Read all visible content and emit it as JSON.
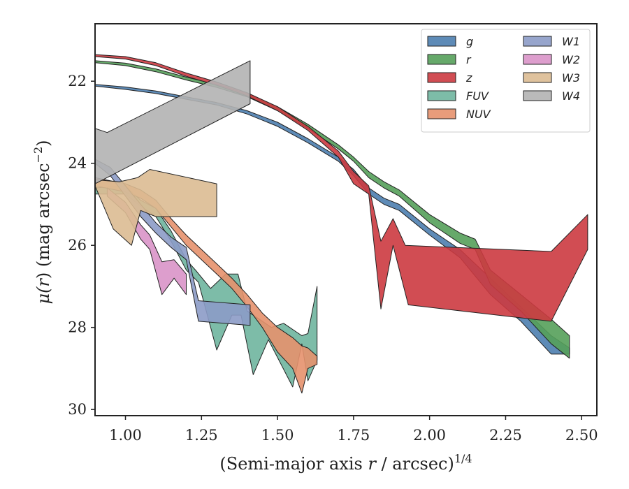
{
  "chart_data": {
    "type": "area",
    "xlabel_main": "(Semi-major axis ",
    "xlabel_var": "r",
    "xlabel_mid": " / arcsec)",
    "xlabel_sup": "1/4",
    "ylabel_mu": "μ(",
    "ylabel_var": "r",
    "ylabel_mid": ") (mag arcsec",
    "ylabel_sup": "−2",
    "ylabel_end": ")",
    "xlim": [
      0.9,
      2.55
    ],
    "ylim": [
      30.15,
      20.6
    ],
    "y_inverted": true,
    "grid": false,
    "legend_position": "top-right",
    "legend_columns": 2,
    "x_ticks": [
      1.0,
      1.25,
      1.5,
      1.75,
      2.0,
      2.25,
      2.5
    ],
    "x_tick_labels": [
      "1.00",
      "1.25",
      "1.50",
      "1.75",
      "2.00",
      "2.25",
      "2.50"
    ],
    "y_ticks": [
      22,
      24,
      26,
      28,
      30
    ],
    "y_tick_labels": [
      "22",
      "24",
      "26",
      "28",
      "30"
    ],
    "series": [
      {
        "name": "g",
        "color": "#4c7eaf",
        "upper": [
          [
            0.9,
            22.08
          ],
          [
            1.0,
            22.14
          ],
          [
            1.1,
            22.24
          ],
          [
            1.2,
            22.38
          ],
          [
            1.3,
            22.52
          ],
          [
            1.4,
            22.72
          ],
          [
            1.5,
            23.0
          ],
          [
            1.6,
            23.4
          ],
          [
            1.7,
            23.85
          ],
          [
            1.75,
            24.15
          ],
          [
            1.8,
            24.6
          ],
          [
            1.85,
            24.85
          ],
          [
            1.9,
            25.0
          ],
          [
            2.0,
            25.6
          ],
          [
            2.1,
            26.1
          ],
          [
            2.2,
            26.8
          ],
          [
            2.3,
            27.5
          ],
          [
            2.4,
            28.2
          ],
          [
            2.46,
            28.5
          ]
        ],
        "lower": [
          [
            0.9,
            22.12
          ],
          [
            1.0,
            22.2
          ],
          [
            1.1,
            22.3
          ],
          [
            1.2,
            22.44
          ],
          [
            1.3,
            22.58
          ],
          [
            1.4,
            22.8
          ],
          [
            1.5,
            23.1
          ],
          [
            1.6,
            23.5
          ],
          [
            1.7,
            23.95
          ],
          [
            1.75,
            24.3
          ],
          [
            1.8,
            24.75
          ],
          [
            1.85,
            25.0
          ],
          [
            1.9,
            25.15
          ],
          [
            2.0,
            25.75
          ],
          [
            2.1,
            26.3
          ],
          [
            2.2,
            27.2
          ],
          [
            2.3,
            27.85
          ],
          [
            2.4,
            28.65
          ],
          [
            2.46,
            28.65
          ]
        ]
      },
      {
        "name": "r",
        "color": "#55a05a",
        "upper": [
          [
            0.9,
            21.5
          ],
          [
            1.0,
            21.56
          ],
          [
            1.1,
            21.7
          ],
          [
            1.2,
            21.9
          ],
          [
            1.3,
            22.08
          ],
          [
            1.4,
            22.3
          ],
          [
            1.5,
            22.62
          ],
          [
            1.6,
            23.05
          ],
          [
            1.7,
            23.55
          ],
          [
            1.75,
            23.85
          ],
          [
            1.8,
            24.2
          ],
          [
            1.85,
            24.45
          ],
          [
            1.9,
            24.65
          ],
          [
            2.0,
            25.25
          ],
          [
            2.1,
            25.7
          ],
          [
            2.15,
            25.85
          ],
          [
            2.2,
            26.6
          ],
          [
            2.3,
            27.2
          ],
          [
            2.4,
            27.8
          ],
          [
            2.46,
            28.2
          ]
        ],
        "lower": [
          [
            0.9,
            21.55
          ],
          [
            1.0,
            21.62
          ],
          [
            1.1,
            21.77
          ],
          [
            1.2,
            21.97
          ],
          [
            1.3,
            22.15
          ],
          [
            1.4,
            22.38
          ],
          [
            1.5,
            22.72
          ],
          [
            1.6,
            23.15
          ],
          [
            1.7,
            23.65
          ],
          [
            1.75,
            23.95
          ],
          [
            1.8,
            24.35
          ],
          [
            1.85,
            24.6
          ],
          [
            1.9,
            24.8
          ],
          [
            2.0,
            25.45
          ],
          [
            2.1,
            25.95
          ],
          [
            2.15,
            26.1
          ],
          [
            2.2,
            26.95
          ],
          [
            2.3,
            27.6
          ],
          [
            2.4,
            28.4
          ],
          [
            2.46,
            28.75
          ]
        ]
      },
      {
        "name": "z",
        "color": "#cc3a40",
        "upper": [
          [
            0.9,
            21.35
          ],
          [
            1.0,
            21.4
          ],
          [
            1.1,
            21.55
          ],
          [
            1.2,
            21.8
          ],
          [
            1.3,
            22.02
          ],
          [
            1.4,
            22.28
          ],
          [
            1.5,
            22.62
          ],
          [
            1.6,
            23.1
          ],
          [
            1.7,
            23.7
          ],
          [
            1.75,
            24.2
          ],
          [
            1.8,
            24.55
          ],
          [
            1.84,
            25.9
          ],
          [
            1.88,
            25.35
          ],
          [
            1.92,
            26.0
          ],
          [
            2.4,
            26.15
          ],
          [
            2.52,
            25.25
          ]
        ],
        "lower": [
          [
            0.9,
            21.4
          ],
          [
            1.0,
            21.46
          ],
          [
            1.1,
            21.62
          ],
          [
            1.2,
            21.88
          ],
          [
            1.3,
            22.1
          ],
          [
            1.4,
            22.36
          ],
          [
            1.5,
            22.72
          ],
          [
            1.6,
            23.2
          ],
          [
            1.7,
            23.85
          ],
          [
            1.75,
            24.5
          ],
          [
            1.8,
            24.75
          ],
          [
            1.84,
            27.55
          ],
          [
            1.88,
            26.0
          ],
          [
            1.93,
            27.45
          ],
          [
            2.4,
            27.85
          ],
          [
            2.52,
            26.1
          ]
        ]
      },
      {
        "name": "FUV",
        "color": "#6fb59e",
        "upper": [
          [
            0.9,
            24.6
          ],
          [
            1.0,
            24.55
          ],
          [
            1.05,
            24.9
          ],
          [
            1.1,
            25.1
          ],
          [
            1.15,
            25.65
          ],
          [
            1.2,
            26.35
          ],
          [
            1.23,
            26.6
          ],
          [
            1.28,
            27.05
          ],
          [
            1.33,
            26.7
          ],
          [
            1.37,
            26.7
          ],
          [
            1.4,
            27.6
          ],
          [
            1.48,
            28.0
          ],
          [
            1.52,
            27.9
          ],
          [
            1.58,
            28.2
          ],
          [
            1.6,
            28.15
          ],
          [
            1.63,
            27.0
          ]
        ],
        "lower": [
          [
            0.9,
            24.75
          ],
          [
            1.0,
            24.75
          ],
          [
            1.05,
            25.05
          ],
          [
            1.1,
            25.3
          ],
          [
            1.15,
            25.9
          ],
          [
            1.2,
            26.6
          ],
          [
            1.24,
            26.9
          ],
          [
            1.3,
            28.55
          ],
          [
            1.35,
            27.7
          ],
          [
            1.38,
            27.7
          ],
          [
            1.42,
            29.15
          ],
          [
            1.47,
            28.3
          ],
          [
            1.55,
            29.45
          ],
          [
            1.58,
            28.4
          ],
          [
            1.6,
            29.3
          ],
          [
            1.63,
            28.8
          ]
        ]
      },
      {
        "name": "NUV",
        "color": "#e5916d",
        "upper": [
          [
            0.9,
            24.35
          ],
          [
            1.0,
            24.5
          ],
          [
            1.05,
            24.65
          ],
          [
            1.1,
            24.9
          ],
          [
            1.15,
            25.35
          ],
          [
            1.2,
            25.75
          ],
          [
            1.25,
            26.1
          ],
          [
            1.3,
            26.45
          ],
          [
            1.35,
            26.8
          ],
          [
            1.4,
            27.2
          ],
          [
            1.45,
            27.65
          ],
          [
            1.5,
            28.0
          ],
          [
            1.55,
            28.25
          ],
          [
            1.58,
            28.45
          ],
          [
            1.6,
            28.5
          ],
          [
            1.63,
            28.7
          ]
        ],
        "lower": [
          [
            0.9,
            24.55
          ],
          [
            1.0,
            24.7
          ],
          [
            1.05,
            24.85
          ],
          [
            1.1,
            25.1
          ],
          [
            1.15,
            25.55
          ],
          [
            1.2,
            26.0
          ],
          [
            1.25,
            26.35
          ],
          [
            1.3,
            26.7
          ],
          [
            1.35,
            27.05
          ],
          [
            1.4,
            27.5
          ],
          [
            1.45,
            28.0
          ],
          [
            1.5,
            28.6
          ],
          [
            1.55,
            29.0
          ],
          [
            1.58,
            29.6
          ],
          [
            1.6,
            29.0
          ],
          [
            1.63,
            28.9
          ]
        ]
      },
      {
        "name": "W1",
        "color": "#8c9bc7",
        "upper": [
          [
            0.9,
            23.9
          ],
          [
            0.95,
            24.1
          ],
          [
            1.0,
            24.55
          ],
          [
            1.05,
            25.0
          ],
          [
            1.1,
            25.45
          ],
          [
            1.15,
            25.8
          ],
          [
            1.2,
            26.05
          ],
          [
            1.24,
            27.35
          ],
          [
            1.41,
            27.45
          ]
        ],
        "lower": [
          [
            0.9,
            24.0
          ],
          [
            0.95,
            24.3
          ],
          [
            1.0,
            24.8
          ],
          [
            1.05,
            25.3
          ],
          [
            1.1,
            25.7
          ],
          [
            1.15,
            26.05
          ],
          [
            1.2,
            26.35
          ],
          [
            1.24,
            27.85
          ],
          [
            1.41,
            27.95
          ]
        ]
      },
      {
        "name": "W2",
        "color": "#d994c8",
        "upper": [
          [
            0.94,
            24.6
          ],
          [
            1.0,
            24.95
          ],
          [
            1.05,
            25.5
          ],
          [
            1.08,
            25.75
          ],
          [
            1.12,
            26.4
          ],
          [
            1.16,
            26.35
          ],
          [
            1.2,
            26.7
          ]
        ],
        "lower": [
          [
            0.94,
            24.8
          ],
          [
            1.0,
            25.2
          ],
          [
            1.05,
            25.85
          ],
          [
            1.08,
            26.1
          ],
          [
            1.12,
            27.2
          ],
          [
            1.16,
            26.8
          ],
          [
            1.2,
            27.2
          ]
        ]
      },
      {
        "name": "W3",
        "color": "#dcbb92",
        "upper": [
          [
            0.9,
            24.4
          ],
          [
            0.98,
            24.45
          ],
          [
            1.04,
            24.35
          ],
          [
            1.08,
            24.15
          ],
          [
            1.3,
            24.5
          ]
        ],
        "lower": [
          [
            0.9,
            24.55
          ],
          [
            0.96,
            25.6
          ],
          [
            1.02,
            26.0
          ],
          [
            1.05,
            25.15
          ],
          [
            1.1,
            25.3
          ],
          [
            1.3,
            25.3
          ]
        ]
      },
      {
        "name": "W4",
        "color": "#b3b3b3",
        "upper": [
          [
            0.9,
            23.15
          ],
          [
            0.94,
            23.25
          ],
          [
            1.41,
            21.5
          ]
        ],
        "lower": [
          [
            0.9,
            24.5
          ],
          [
            1.41,
            22.55
          ]
        ]
      }
    ]
  }
}
